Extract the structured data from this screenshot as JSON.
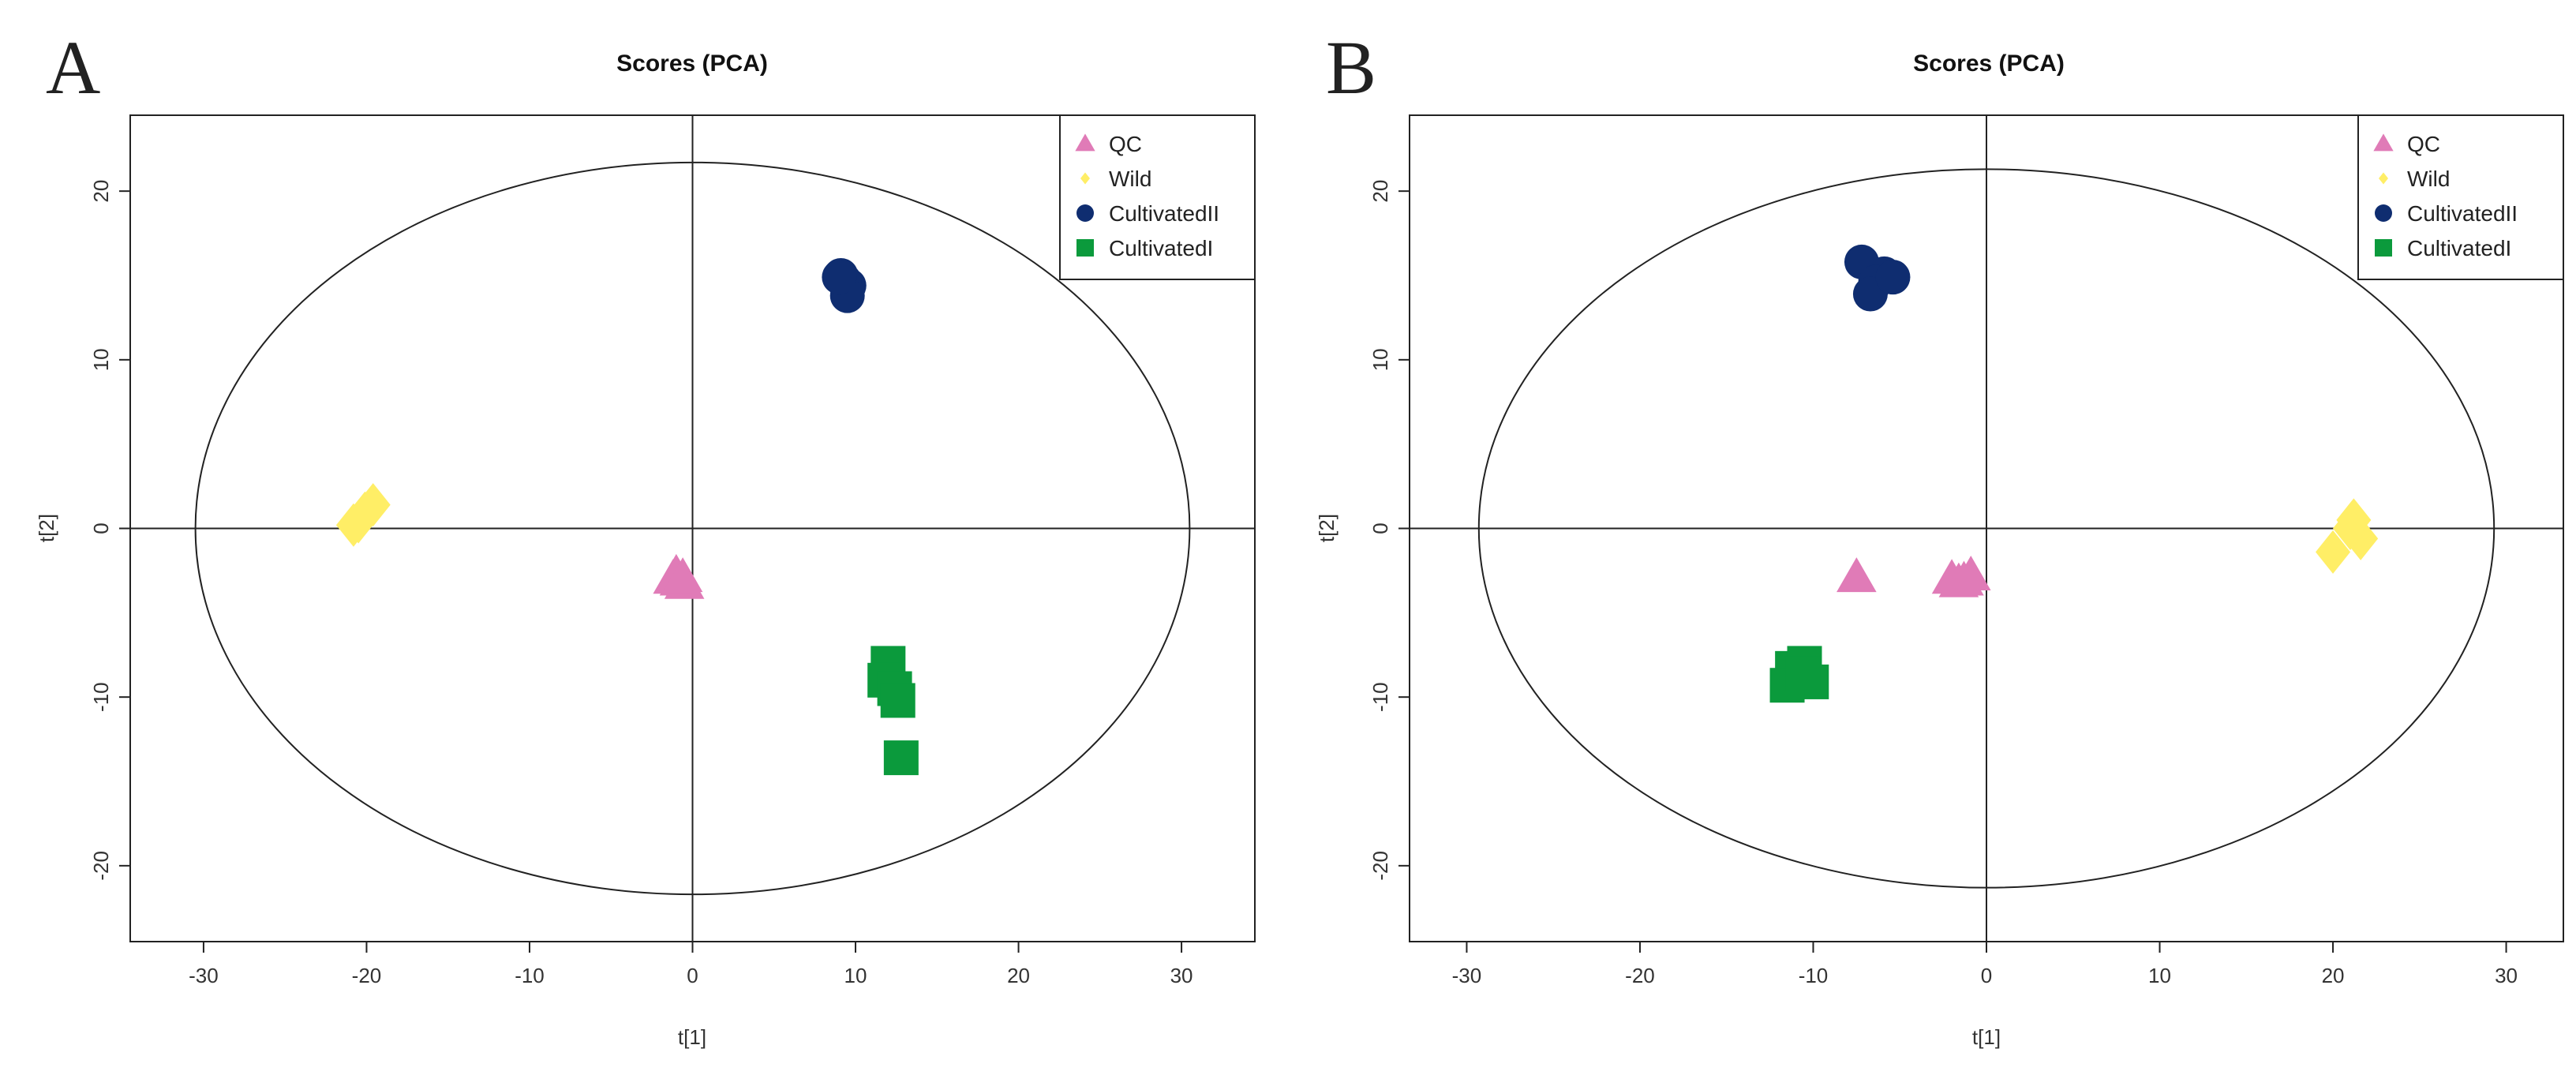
{
  "chart_data": [
    {
      "panel_label": "A",
      "type": "scatter",
      "title": "Scores (PCA)",
      "xlabel": "t[1]",
      "ylabel": "t[2]",
      "xlim": [
        -34.5,
        34.5
      ],
      "ylim": [
        -24.5,
        24.5
      ],
      "xticks": [
        -30,
        -20,
        -10,
        0,
        10,
        20,
        30
      ],
      "yticks": [
        -20,
        -10,
        0,
        10,
        20
      ],
      "ellipse": {
        "rx": 30.5,
        "ry": 21.7
      },
      "legend_position": "top-right",
      "series": [
        {
          "name": "QC",
          "marker": "triangle",
          "color": "#e07bb7",
          "points": [
            [
              -1.0,
              -2.7
            ],
            [
              -0.8,
              -3.1
            ],
            [
              -0.5,
              -3.3
            ],
            [
              -1.2,
              -3.0
            ],
            [
              -0.6,
              -2.9
            ]
          ]
        },
        {
          "name": "Wild",
          "marker": "diamond",
          "color": "#ffee66",
          "points": [
            [
              -20.5,
              0.4
            ],
            [
              -19.6,
              1.4
            ],
            [
              -20.1,
              0.9
            ],
            [
              -20.8,
              0.2
            ]
          ]
        },
        {
          "name": "CultivatedII",
          "marker": "circle",
          "color": "#0f2d70",
          "points": [
            [
              9.1,
              15.0
            ],
            [
              9.6,
              14.4
            ],
            [
              9.3,
              14.7
            ],
            [
              9.5,
              13.8
            ],
            [
              9.0,
              14.9
            ]
          ]
        },
        {
          "name": "CultivatedI",
          "marker": "square",
          "color": "#0b9a3c",
          "points": [
            [
              12.0,
              -8.0
            ],
            [
              11.8,
              -9.0
            ],
            [
              12.4,
              -9.5
            ],
            [
              12.6,
              -10.2
            ],
            [
              12.8,
              -13.6
            ]
          ]
        }
      ]
    },
    {
      "panel_label": "B",
      "type": "scatter",
      "title": "Scores (PCA)",
      "xlabel": "t[1]",
      "ylabel": "t[2]",
      "xlim": [
        -33.3,
        33.3
      ],
      "ylim": [
        -24.5,
        24.5
      ],
      "xticks": [
        -30,
        -20,
        -10,
        0,
        10,
        20,
        30
      ],
      "yticks": [
        -20,
        -10,
        0,
        10,
        20
      ],
      "ellipse": {
        "rx": 29.3,
        "ry": 21.3
      },
      "legend_position": "top-right",
      "series": [
        {
          "name": "QC",
          "marker": "triangle",
          "color": "#e07bb7",
          "points": [
            [
              -7.5,
              -2.9
            ],
            [
              -2.0,
              -3.0
            ],
            [
              -1.3,
              -3.1
            ],
            [
              -0.9,
              -2.8
            ],
            [
              -1.6,
              -3.2
            ]
          ]
        },
        {
          "name": "Wild",
          "marker": "diamond",
          "color": "#ffee66",
          "points": [
            [
              21.2,
              0.5
            ],
            [
              21.6,
              -0.6
            ],
            [
              20.0,
              -1.4
            ],
            [
              21.0,
              0.0
            ]
          ]
        },
        {
          "name": "CultivatedII",
          "marker": "circle",
          "color": "#0f2d70",
          "points": [
            [
              -7.2,
              15.8
            ],
            [
              -5.9,
              15.1
            ],
            [
              -6.4,
              14.6
            ],
            [
              -6.7,
              13.9
            ],
            [
              -5.4,
              14.9
            ]
          ]
        },
        {
          "name": "CultivatedI",
          "marker": "square",
          "color": "#0b9a3c",
          "points": [
            [
              -11.2,
              -8.3
            ],
            [
              -10.5,
              -8.0
            ],
            [
              -10.1,
              -9.1
            ],
            [
              -11.5,
              -9.3
            ],
            [
              -10.6,
              -8.6
            ]
          ]
        }
      ]
    }
  ]
}
